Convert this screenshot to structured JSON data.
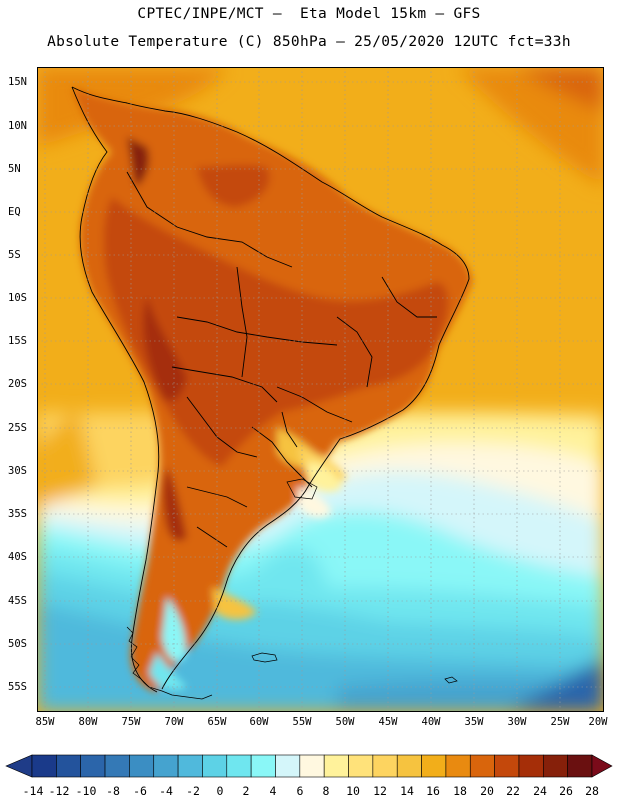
{
  "header": {
    "line1": "CPTEC/INPE/MCT –  Eta Model 15km – GFS",
    "line2": "Absolute Temperature (C) 850hPa – 25/05/2020 12UTC fct=33h"
  },
  "lat_labels": [
    "15N",
    "10N",
    "5N",
    "EQ",
    "5S",
    "10S",
    "15S",
    "20S",
    "25S",
    "30S",
    "35S",
    "40S",
    "45S",
    "50S",
    "55S"
  ],
  "lon_labels": [
    "85W",
    "80W",
    "75W",
    "70W",
    "65W",
    "60W",
    "55W",
    "50W",
    "45W",
    "40W",
    "35W",
    "30W",
    "25W",
    "20W"
  ],
  "colorbar": {
    "labels": [
      "-14",
      "-12",
      "-10",
      "-8",
      "-6",
      "-4",
      "-2",
      "0",
      "2",
      "4",
      "6",
      "8",
      "10",
      "12",
      "14",
      "16",
      "18",
      "20",
      "22",
      "24",
      "26",
      "28"
    ],
    "colors": [
      "#1a3a8a",
      "#23539c",
      "#2b65aa",
      "#3479b6",
      "#3b8ec3",
      "#45a3cf",
      "#50b9dc",
      "#5dd2e6",
      "#6fe6ef",
      "#8af7f7",
      "#d4f6fa",
      "#fff8e0",
      "#fff29b",
      "#ffe27a",
      "#fdd460",
      "#f6c33f",
      "#f2ae1a",
      "#e98a10",
      "#d9650c",
      "#c4480b",
      "#a52e08",
      "#86200a",
      "#6a1010"
    ],
    "under_color": "#1f3c88",
    "over_color": "#7a0b1a"
  }
}
